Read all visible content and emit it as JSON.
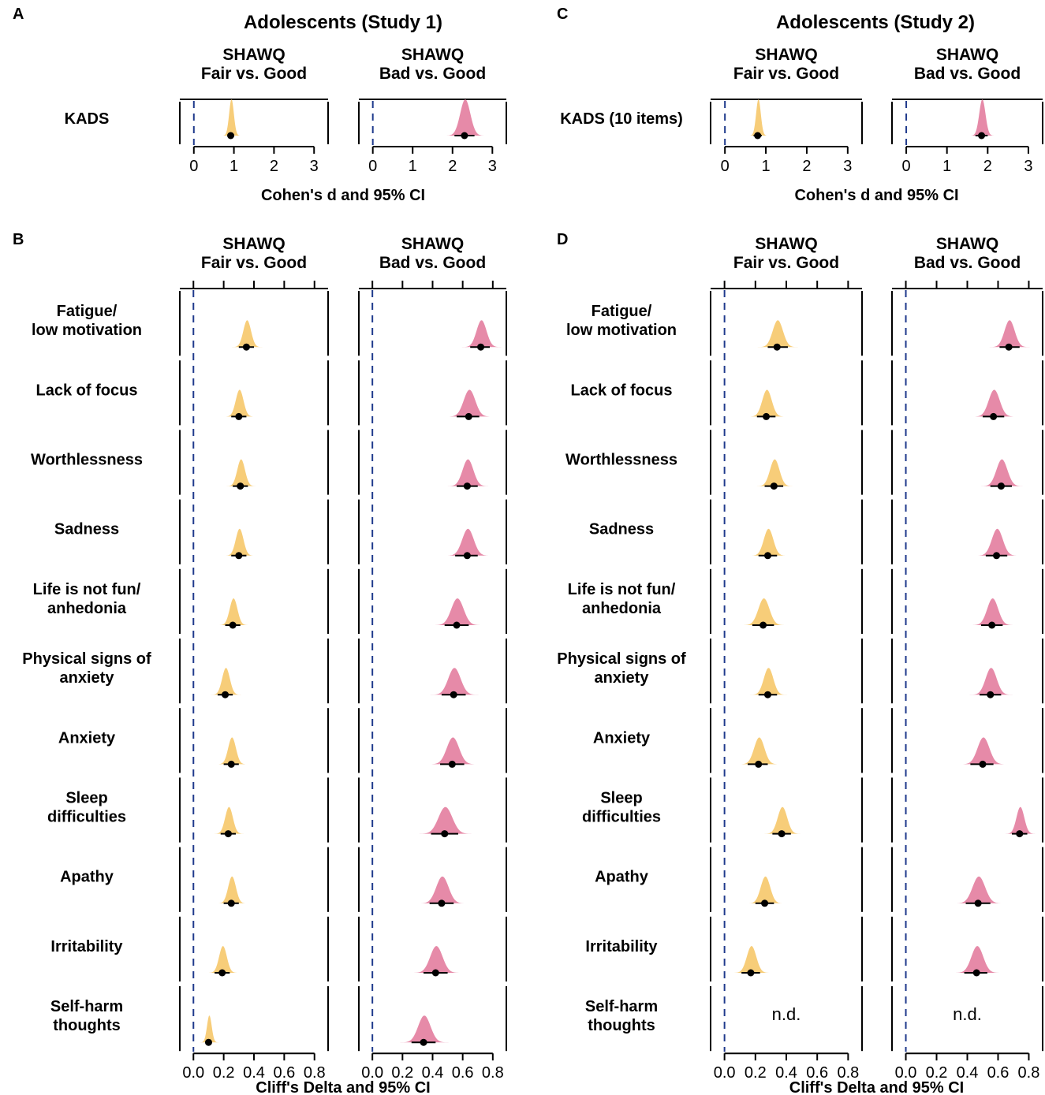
{
  "colors": {
    "fair": "#f6c86a",
    "bad": "#e37d9f",
    "zero_line": "#1f3a8c",
    "nd_text": "#1f2a6b",
    "frame": "#000000",
    "point": "#000000"
  },
  "chart_data": [
    {
      "panel": "A",
      "type": "distribution",
      "title": "Adolescents (Study 1)",
      "xlabel": "Cohen's d and 95% CI",
      "xlim": [
        -0.35,
        3.35
      ],
      "ticks": [
        "0",
        "1",
        "2",
        "3"
      ],
      "tick_values": [
        0,
        1,
        2,
        3
      ],
      "facets": [
        {
          "label_line1": "SHAWQ",
          "label_line2": "Fair vs. Good",
          "color_key": "fair"
        },
        {
          "label_line1": "SHAWQ",
          "label_line2": "Bad vs. Good",
          "color_key": "bad"
        }
      ],
      "rows": [
        {
          "label": [
            "KADS"
          ],
          "est": [
            0.92,
            2.3
          ],
          "lo": [
            0.84,
            2.05
          ],
          "hi": [
            1.0,
            2.55
          ]
        }
      ]
    },
    {
      "panel": "B",
      "type": "distribution",
      "xlabel": "Cliff's Delta and 95% CI",
      "xlim": [
        -0.09,
        0.89
      ],
      "ticks": [
        "0.0",
        "0.2",
        "0.4",
        "0.6",
        "0.8"
      ],
      "tick_values": [
        0,
        0.2,
        0.4,
        0.6,
        0.8
      ],
      "facets": [
        {
          "label_line1": "SHAWQ",
          "label_line2": "Fair vs. Good",
          "color_key": "fair"
        },
        {
          "label_line1": "SHAWQ",
          "label_line2": "Bad vs. Good",
          "color_key": "bad"
        }
      ],
      "rows": [
        {
          "label": [
            "Fatigue/",
            "low motivation"
          ],
          "est": [
            0.35,
            0.72
          ],
          "lo": [
            0.3,
            0.65
          ],
          "hi": [
            0.4,
            0.78
          ]
        },
        {
          "label": [
            "Lack of focus"
          ],
          "est": [
            0.3,
            0.64
          ],
          "lo": [
            0.25,
            0.56
          ],
          "hi": [
            0.35,
            0.71
          ]
        },
        {
          "label": [
            "Worthlessness"
          ],
          "est": [
            0.31,
            0.63
          ],
          "lo": [
            0.26,
            0.56
          ],
          "hi": [
            0.36,
            0.7
          ]
        },
        {
          "label": [
            "Sadness"
          ],
          "est": [
            0.3,
            0.63
          ],
          "lo": [
            0.25,
            0.55
          ],
          "hi": [
            0.35,
            0.7
          ]
        },
        {
          "label": [
            "Life is not fun/",
            "anhedonia"
          ],
          "est": [
            0.26,
            0.56
          ],
          "lo": [
            0.21,
            0.48
          ],
          "hi": [
            0.31,
            0.64
          ]
        },
        {
          "label": [
            "Physical signs of",
            "anxiety"
          ],
          "est": [
            0.21,
            0.54
          ],
          "lo": [
            0.16,
            0.46
          ],
          "hi": [
            0.26,
            0.62
          ]
        },
        {
          "label": [
            "Anxiety"
          ],
          "est": [
            0.25,
            0.53
          ],
          "lo": [
            0.2,
            0.45
          ],
          "hi": [
            0.3,
            0.61
          ]
        },
        {
          "label": [
            "Sleep",
            "difficulties"
          ],
          "est": [
            0.23,
            0.48
          ],
          "lo": [
            0.18,
            0.39
          ],
          "hi": [
            0.28,
            0.57
          ]
        },
        {
          "label": [
            "Apathy"
          ],
          "est": [
            0.25,
            0.46
          ],
          "lo": [
            0.2,
            0.38
          ],
          "hi": [
            0.3,
            0.54
          ]
        },
        {
          "label": [
            "Irritability"
          ],
          "est": [
            0.19,
            0.42
          ],
          "lo": [
            0.14,
            0.34
          ],
          "hi": [
            0.24,
            0.5
          ]
        },
        {
          "label": [
            "Self-harm",
            "thoughts"
          ],
          "est": [
            0.1,
            0.34
          ],
          "lo": [
            0.08,
            0.26
          ],
          "hi": [
            0.12,
            0.42
          ]
        }
      ]
    },
    {
      "panel": "C",
      "type": "distribution",
      "title": "Adolescents (Study 2)",
      "xlabel": "Cohen's d and 95% CI",
      "xlim": [
        -0.35,
        3.35
      ],
      "ticks": [
        "0",
        "1",
        "2",
        "3"
      ],
      "tick_values": [
        0,
        1,
        2,
        3
      ],
      "facets": [
        {
          "label_line1": "SHAWQ",
          "label_line2": "Fair vs. Good",
          "color_key": "fair"
        },
        {
          "label_line1": "SHAWQ",
          "label_line2": "Bad vs. Good",
          "color_key": "bad"
        }
      ],
      "rows": [
        {
          "label": [
            "KADS (10 items)"
          ],
          "est": [
            0.8,
            1.85
          ],
          "lo": [
            0.7,
            1.7
          ],
          "hi": [
            0.9,
            2.0
          ]
        }
      ]
    },
    {
      "panel": "D",
      "type": "distribution",
      "xlabel": "Cliff's Delta and 95% CI",
      "xlim": [
        -0.09,
        0.89
      ],
      "ticks": [
        "0.0",
        "0.2",
        "0.4",
        "0.6",
        "0.8"
      ],
      "tick_values": [
        0,
        0.2,
        0.4,
        0.6,
        0.8
      ],
      "facets": [
        {
          "label_line1": "SHAWQ",
          "label_line2": "Fair vs. Good",
          "color_key": "fair"
        },
        {
          "label_line1": "SHAWQ",
          "label_line2": "Bad vs. Good",
          "color_key": "bad"
        }
      ],
      "rows": [
        {
          "label": [
            "Fatigue/",
            "low motivation"
          ],
          "est": [
            0.34,
            0.67
          ],
          "lo": [
            0.28,
            0.61
          ],
          "hi": [
            0.41,
            0.74
          ]
        },
        {
          "label": [
            "Lack of focus"
          ],
          "est": [
            0.27,
            0.57
          ],
          "lo": [
            0.21,
            0.5
          ],
          "hi": [
            0.33,
            0.64
          ]
        },
        {
          "label": [
            "Worthlessness"
          ],
          "est": [
            0.32,
            0.62
          ],
          "lo": [
            0.26,
            0.55
          ],
          "hi": [
            0.38,
            0.69
          ]
        },
        {
          "label": [
            "Sadness"
          ],
          "est": [
            0.28,
            0.59
          ],
          "lo": [
            0.22,
            0.52
          ],
          "hi": [
            0.34,
            0.66
          ]
        },
        {
          "label": [
            "Life is not fun/",
            "anhedonia"
          ],
          "est": [
            0.25,
            0.56
          ],
          "lo": [
            0.18,
            0.49
          ],
          "hi": [
            0.32,
            0.63
          ]
        },
        {
          "label": [
            "Physical signs of",
            "anxiety"
          ],
          "est": [
            0.28,
            0.55
          ],
          "lo": [
            0.22,
            0.48
          ],
          "hi": [
            0.34,
            0.62
          ]
        },
        {
          "label": [
            "Anxiety"
          ],
          "est": [
            0.22,
            0.5
          ],
          "lo": [
            0.15,
            0.42
          ],
          "hi": [
            0.28,
            0.57
          ]
        },
        {
          "label": [
            "Sleep",
            "difficulties"
          ],
          "est": [
            0.37,
            0.74
          ],
          "lo": [
            0.31,
            0.69
          ],
          "hi": [
            0.43,
            0.79
          ]
        },
        {
          "label": [
            "Apathy"
          ],
          "est": [
            0.26,
            0.47
          ],
          "lo": [
            0.2,
            0.39
          ],
          "hi": [
            0.32,
            0.55
          ]
        },
        {
          "label": [
            "Irritability"
          ],
          "est": [
            0.17,
            0.46
          ],
          "lo": [
            0.11,
            0.38
          ],
          "hi": [
            0.23,
            0.53
          ]
        },
        {
          "label": [
            "Self-harm",
            "thoughts"
          ],
          "est": [
            null,
            null
          ],
          "lo": [
            null,
            null
          ],
          "hi": [
            null,
            null
          ],
          "note": "n.d."
        }
      ]
    }
  ]
}
